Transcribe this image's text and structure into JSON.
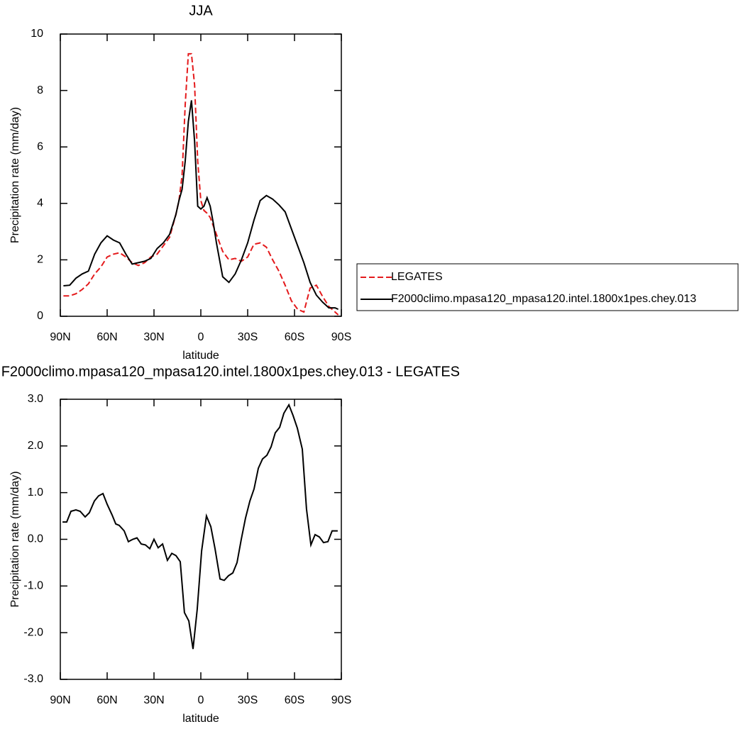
{
  "chart_data": [
    {
      "type": "line",
      "title": "JJA",
      "xlabel": "latitude",
      "ylabel": "Precipitation rate (mm/day)",
      "x": [
        88,
        84,
        80,
        76,
        72,
        68,
        64,
        60,
        56,
        52,
        48,
        44,
        40,
        36,
        32,
        28,
        24,
        20,
        16,
        14,
        12,
        10,
        8,
        6,
        4,
        2,
        0,
        -2,
        -4,
        -6,
        -8,
        -10,
        -14,
        -18,
        -22,
        -26,
        -30,
        -34,
        -38,
        -42,
        -46,
        -50,
        -54,
        -58,
        -62,
        -66,
        -70,
        -74,
        -78,
        -82,
        -86,
        -88
      ],
      "series": [
        {
          "name": "LEGATES",
          "color": "#e41a1c",
          "line_style": "dashed",
          "values": [
            0.72,
            0.72,
            0.8,
            0.95,
            1.15,
            1.5,
            1.75,
            2.1,
            2.2,
            2.25,
            2.1,
            1.9,
            1.8,
            1.9,
            2.1,
            2.2,
            2.5,
            2.8,
            3.6,
            4.1,
            5.0,
            7.5,
            9.3,
            9.3,
            8.2,
            5.5,
            4.1,
            3.75,
            3.65,
            3.5,
            3.2,
            2.9,
            2.3,
            2.0,
            2.05,
            1.95,
            2.1,
            2.55,
            2.6,
            2.45,
            2.0,
            1.6,
            1.1,
            0.55,
            0.25,
            0.15,
            1.0,
            1.1,
            0.7,
            0.35,
            0.15,
            0.05
          ]
        },
        {
          "name": "F2000climo.mpasa120_mpasa120.intel.1800x1pes.chey.013",
          "color": "#000000",
          "line_style": "solid",
          "values": [
            1.08,
            1.1,
            1.35,
            1.5,
            1.6,
            2.2,
            2.6,
            2.85,
            2.7,
            2.6,
            2.2,
            1.85,
            1.9,
            1.95,
            2.05,
            2.4,
            2.6,
            2.9,
            3.6,
            4.1,
            4.5,
            5.5,
            6.9,
            7.65,
            6.2,
            3.9,
            3.8,
            3.9,
            4.2,
            3.9,
            3.3,
            2.6,
            1.4,
            1.2,
            1.5,
            2.0,
            2.6,
            3.4,
            4.1,
            4.28,
            4.15,
            3.95,
            3.7,
            3.1,
            2.5,
            1.9,
            1.2,
            0.75,
            0.5,
            0.3,
            0.3,
            0.25
          ]
        }
      ],
      "xlim": [
        90,
        -90
      ],
      "xticks": [
        {
          "value": 90,
          "label": "90N"
        },
        {
          "value": 60,
          "label": "60N"
        },
        {
          "value": 30,
          "label": "30N"
        },
        0,
        {
          "value": -30,
          "label": "30S"
        },
        {
          "value": -60,
          "label": "60S"
        },
        {
          "value": -90,
          "label": "90S"
        }
      ],
      "ylim": [
        0,
        10
      ],
      "yticks": [
        0,
        2,
        4,
        6,
        8,
        10
      ],
      "legend": "outside right"
    },
    {
      "type": "line",
      "title": "F2000climo.mpasa120_mpasa120.intel.1800x1pes.chey.013 - LEGATES",
      "xlabel": "latitude",
      "ylabel": "Precipitation rate (mm/day)",
      "x": [
        88.6,
        85.9,
        83.2,
        80.0,
        77.3,
        74.1,
        71.4,
        68.2,
        65.5,
        62.7,
        60.0,
        56.8,
        54.5,
        52.3,
        49.1,
        46.4,
        43.6,
        40.9,
        38.2,
        35.5,
        32.7,
        30.0,
        27.3,
        24.5,
        21.4,
        18.6,
        15.9,
        13.2,
        10.5,
        7.7,
        5.0,
        2.3,
        -0.5,
        -3.6,
        -6.4,
        -9.1,
        -12.3,
        -15.0,
        -17.7,
        -20.5,
        -23.2,
        -25.9,
        -28.6,
        -31.4,
        -34.1,
        -36.8,
        -39.5,
        -42.3,
        -45.0,
        -47.7,
        -50.5,
        -53.2,
        -56.4,
        -59.1,
        -61.8,
        -65.0,
        -67.7,
        -70.5,
        -73.2,
        -75.9,
        -78.6,
        -81.4,
        -84.1,
        -87.7
      ],
      "values": [
        0.37,
        0.37,
        0.6,
        0.63,
        0.6,
        0.48,
        0.57,
        0.82,
        0.93,
        0.98,
        0.75,
        0.52,
        0.33,
        0.3,
        0.18,
        -0.05,
        0,
        0.03,
        -0.1,
        -0.12,
        -0.2,
        0,
        -0.18,
        -0.1,
        -0.45,
        -0.3,
        -0.35,
        -0.48,
        -1.57,
        -1.75,
        -2.35,
        -1.5,
        -0.25,
        0.5,
        0.27,
        -0.2,
        -0.85,
        -0.88,
        -0.78,
        -0.72,
        -0.5,
        0,
        0.45,
        0.82,
        1.08,
        1.52,
        1.72,
        1.8,
        1.98,
        2.28,
        2.4,
        2.7,
        2.88,
        2.65,
        2.38,
        1.93,
        0.65,
        -0.12,
        0.1,
        0.05,
        -0.07,
        -0.05,
        0.18,
        0.18
      ],
      "color": "#000000",
      "xlim": [
        90,
        -90
      ],
      "xticks": [
        {
          "value": 90,
          "label": "90N"
        },
        {
          "value": 60,
          "label": "60N"
        },
        {
          "value": 30,
          "label": "30N"
        },
        0,
        {
          "value": -30,
          "label": "30S"
        },
        {
          "value": -60,
          "label": "60S"
        },
        {
          "value": -90,
          "label": "90S"
        }
      ],
      "ylim": [
        -3,
        3
      ],
      "yticks": [
        {
          "value": -3,
          "label": "-3.0"
        },
        {
          "value": -2,
          "label": "-2.0"
        },
        {
          "value": -1,
          "label": "-1.0"
        },
        {
          "value": 0,
          "label": "0.0"
        },
        {
          "value": 1,
          "label": "1.0"
        },
        {
          "value": 2,
          "label": "2.0"
        },
        {
          "value": 3,
          "label": "3.0"
        }
      ]
    }
  ]
}
